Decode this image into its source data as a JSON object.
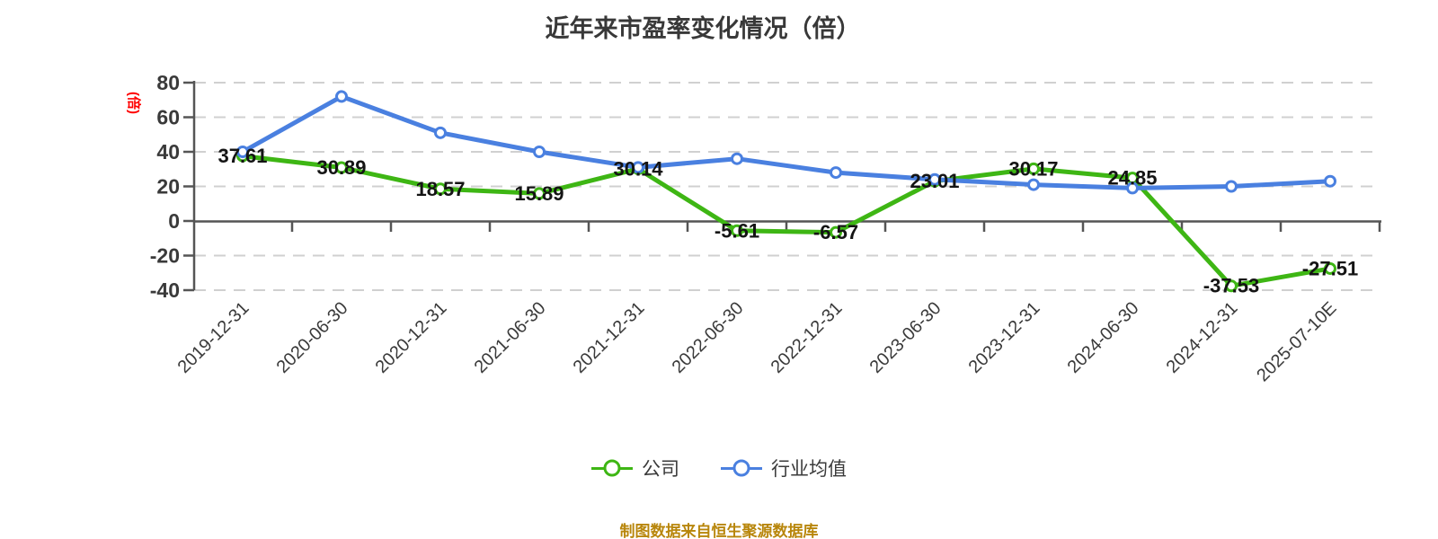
{
  "title": "近年来市盈率变化情况（倍）",
  "unit_label": "(倍)",
  "footer": "制图数据来自恒生聚源数据库",
  "legend": [
    {
      "label": "公司"
    },
    {
      "label": "行业均值"
    }
  ],
  "colors": {
    "company_series": "#3eb614",
    "industry_series": "#4a80e0",
    "unit_label_red": "#ff0000",
    "footer_gold": "#b8860b",
    "grid": "#d0d0d0",
    "axis": "#555555",
    "tick_label": "#3a3a3a",
    "value_label": "#141414",
    "title_text": "#383838"
  },
  "chart_data": {
    "type": "line",
    "title": "近年来市盈率变化情况（倍）",
    "categories": [
      "2019-12-31",
      "2020-06-30",
      "2020-12-31",
      "2021-06-30",
      "2021-12-31",
      "2022-06-30",
      "2022-12-31",
      "2023-06-30",
      "2023-12-31",
      "2024-06-30",
      "2024-12-31",
      "2025-07-10E"
    ],
    "series": [
      {
        "name": "公司",
        "color": "#3eb614",
        "show_point_labels": true,
        "values": [
          37.61,
          30.89,
          18.57,
          15.89,
          30.14,
          -5.61,
          -6.57,
          23.01,
          30.17,
          24.85,
          -37.53,
          -27.51
        ]
      },
      {
        "name": "行业均值",
        "color": "#4a80e0",
        "show_point_labels": false,
        "values": [
          40,
          72,
          51,
          40,
          31,
          36,
          28,
          24,
          21,
          19,
          20,
          23
        ]
      }
    ],
    "ylabel": "(倍)",
    "y_ticks": [
      80,
      60,
      40,
      20,
      0,
      -20,
      -40
    ],
    "ylim": [
      -40,
      80
    ],
    "grid": "horizontal-dashed",
    "x_tick_rotation": -45,
    "marker": "circle-white-fill",
    "legend_position": "bottom"
  }
}
